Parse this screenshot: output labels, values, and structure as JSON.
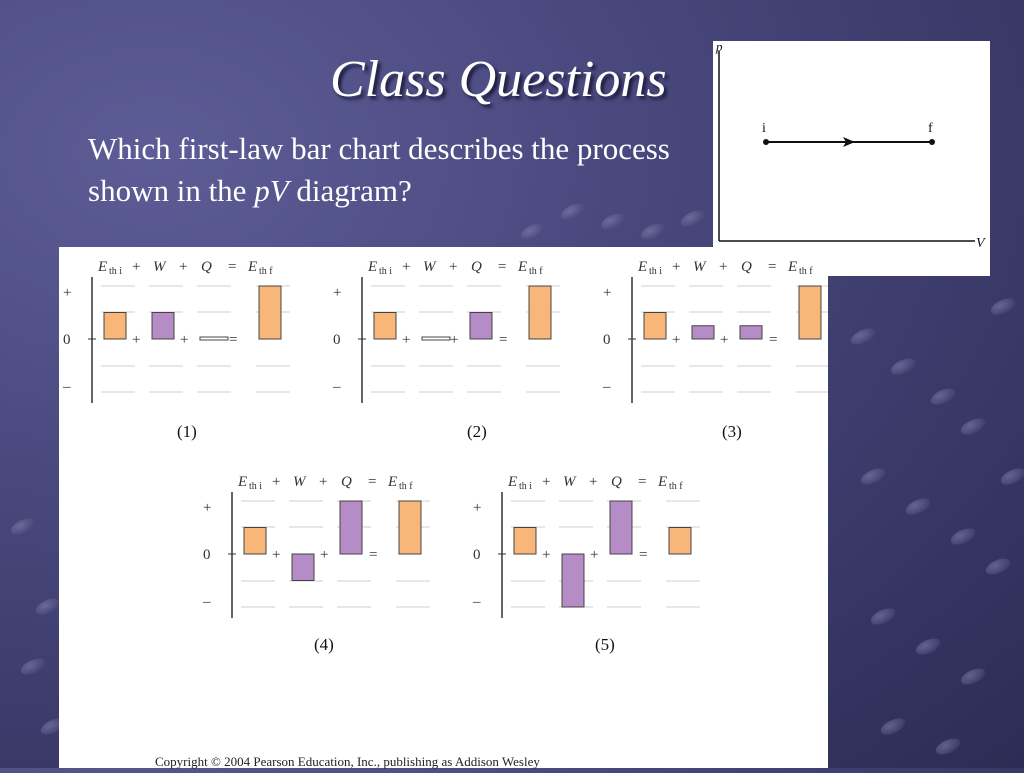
{
  "slide": {
    "title": "Class Questions",
    "question_part1": "Which first-law bar chart describes the process shown in the ",
    "question_italic": "pV",
    "question_part2": " diagram?",
    "copyright": "Copyright © 2004 Pearson Education, Inc., publishing as Addison Wesley"
  },
  "pv_diagram": {
    "y_axis_label": "p",
    "x_axis_label": "V",
    "initial_label": "i",
    "final_label": "f"
  },
  "chart_data": [
    {
      "type": "bar",
      "label": "(1)",
      "categories": [
        "Eth i",
        "W",
        "Q",
        "Eth f"
      ],
      "values": [
        1,
        1,
        0,
        2
      ]
    },
    {
      "type": "bar",
      "label": "(2)",
      "categories": [
        "Eth i",
        "W",
        "Q",
        "Eth f"
      ],
      "values": [
        1,
        0,
        1,
        2
      ]
    },
    {
      "type": "bar",
      "label": "(3)",
      "categories": [
        "Eth i",
        "W",
        "Q",
        "Eth f"
      ],
      "values": [
        1,
        0.5,
        0.5,
        2
      ]
    },
    {
      "type": "bar",
      "label": "(4)",
      "categories": [
        "Eth i",
        "W",
        "Q",
        "Eth f"
      ],
      "values": [
        1,
        -1,
        2,
        2
      ]
    },
    {
      "type": "bar",
      "label": "(5)",
      "categories": [
        "Eth i",
        "W",
        "Q",
        "Eth f"
      ],
      "values": [
        1,
        -2,
        2,
        1
      ]
    }
  ],
  "chart_header": {
    "e_symbol": "E",
    "sub_initial": "th i",
    "sub_final": "th f",
    "w_symbol": "W",
    "q_symbol": "Q",
    "plus": "+",
    "equals": "=",
    "minus": "–",
    "zero": "0"
  },
  "colors": {
    "energy_bar": "#f8b678",
    "transfer_bar": "#b58cc6",
    "bar_stroke": "#444444",
    "grid_line": "#cfcfcf"
  }
}
